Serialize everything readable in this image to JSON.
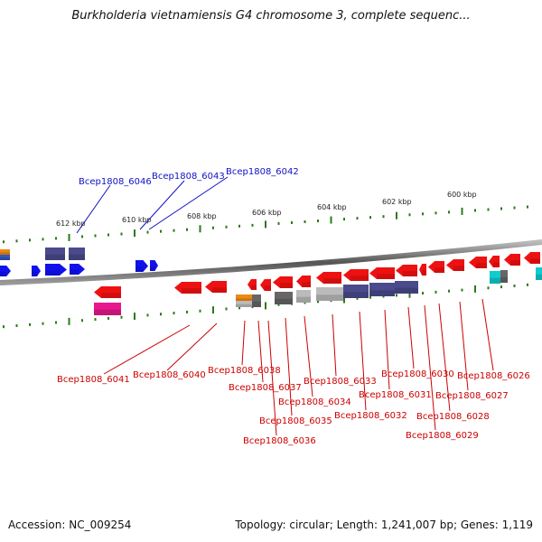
{
  "title": "Burkholderia vietnamiensis G4 chromosome 3, complete sequenc...",
  "footer": {
    "accession": "Accession: NC_009254",
    "summary": "Topology: circular; Length: 1,241,007 bp; Genes: 1,119"
  },
  "scale_ticks": [
    "612 kbp",
    "610 kbp",
    "608 kbp",
    "606 kbp",
    "604 kbp",
    "602 kbp",
    "600 kbp"
  ],
  "colors": {
    "forward_label": "#1010c8",
    "reverse_label": "#cc0000",
    "reverse_gene": "#ee1111",
    "forward_gene": "#1111ee",
    "tick": "#2a7a1a"
  },
  "forward_labels": [
    "Bcep1808_6046",
    "Bcep1808_6043",
    "Bcep1808_6042"
  ],
  "reverse_labels": [
    "Bcep1808_6041",
    "Bcep1808_6040",
    "Bcep1808_6038",
    "Bcep1808_6037",
    "Bcep1808_6036",
    "Bcep1808_6035",
    "Bcep1808_6034",
    "Bcep1808_6033",
    "Bcep1808_6032",
    "Bcep1808_6031",
    "Bcep1808_6030",
    "Bcep1808_6029",
    "Bcep1808_6028",
    "Bcep1808_6027",
    "Bcep1808_6026"
  ]
}
